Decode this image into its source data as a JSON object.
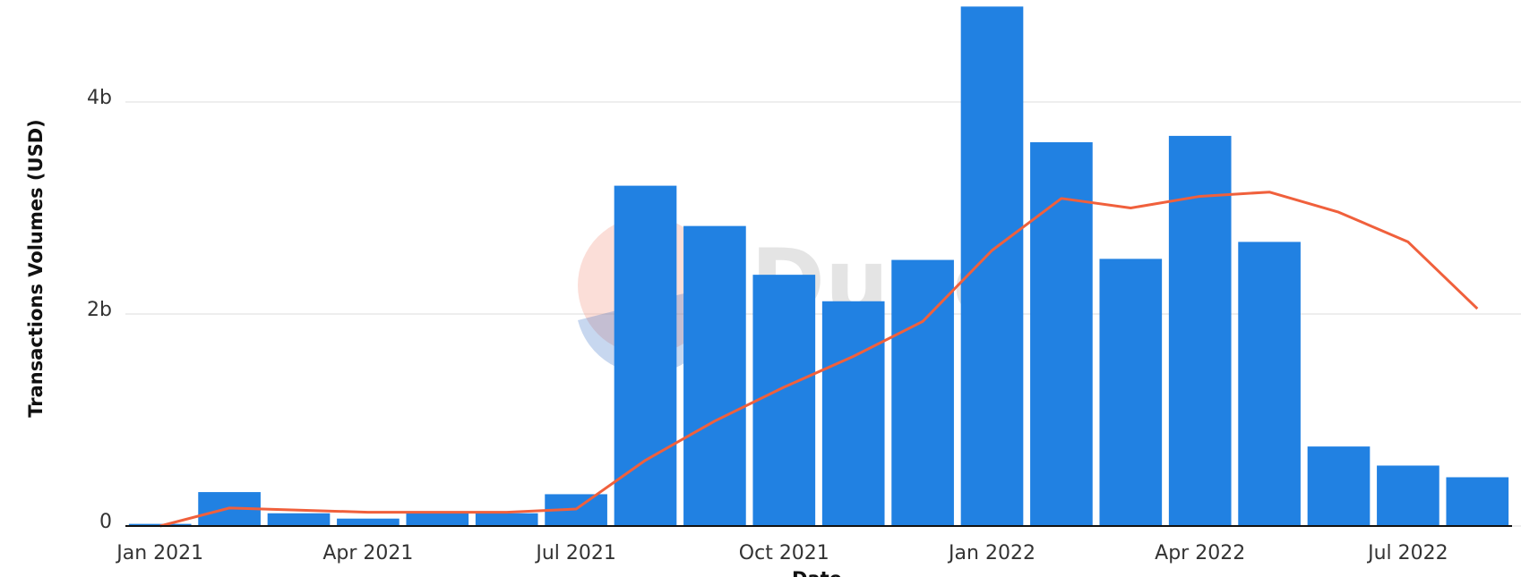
{
  "chart_data": {
    "type": "bar",
    "y_label": "Transactions Volumes (USD)",
    "x_label": "Date",
    "watermark": "Dune",
    "categories": [
      "Jan 2021",
      null,
      null,
      "Apr 2021",
      null,
      null,
      "Jul 2021",
      null,
      null,
      "Oct 2021",
      null,
      null,
      "Jan 2022",
      null,
      null,
      "Apr 2022",
      null,
      null,
      "Jul 2022",
      null
    ],
    "series": [
      {
        "type": "bar",
        "color": "#2181e2",
        "values": [
          0.02,
          0.32,
          0.12,
          0.07,
          0.12,
          0.12,
          0.3,
          3.21,
          2.83,
          2.37,
          2.12,
          2.51,
          4.9,
          3.62,
          2.52,
          3.68,
          2.68,
          0.75,
          0.57,
          0.46
        ]
      },
      {
        "type": "line",
        "color": "#f0603c",
        "values": [
          0.0,
          0.17,
          0.15,
          0.13,
          0.13,
          0.13,
          0.16,
          0.62,
          0.99,
          1.31,
          1.6,
          1.93,
          2.6,
          3.09,
          3.0,
          3.11,
          3.15,
          2.96,
          2.68,
          2.05
        ]
      }
    ],
    "ylim": [
      0,
      4.95
    ],
    "yticks": [
      0,
      {
        "value": 2,
        "label": "2b"
      },
      {
        "value": 4,
        "label": "4b"
      }
    ],
    "grid": true
  }
}
